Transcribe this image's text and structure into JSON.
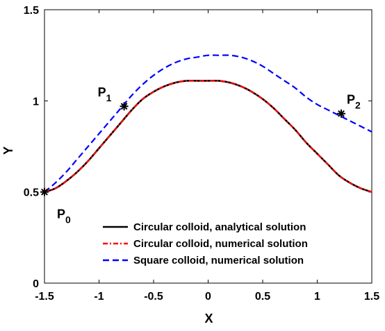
{
  "chart_data": {
    "type": "line",
    "xlabel": "X",
    "ylabel": "Y",
    "xlim": [
      -1.5,
      1.5
    ],
    "ylim": [
      0,
      1.5
    ],
    "xticks": [
      -1.5,
      -1,
      -0.5,
      0,
      0.5,
      1,
      1.5
    ],
    "xtick_labels": [
      "-1.5",
      "-1",
      "-0.5",
      "0",
      "0.5",
      "1",
      "1.5"
    ],
    "yticks": [
      0,
      0.5,
      1,
      1.5
    ],
    "ytick_labels": [
      "0",
      "0.5",
      "1",
      "1.5"
    ],
    "grid": false,
    "legend_position": "bottom-center",
    "series": [
      {
        "name": "Circular colloid, analytical solution",
        "color": "#000000",
        "style": "solid",
        "x": [
          -1.5,
          -1.4,
          -1.3,
          -1.2,
          -1.1,
          -1.0,
          -0.9,
          -0.8,
          -0.7,
          -0.6,
          -0.5,
          -0.4,
          -0.3,
          -0.2,
          -0.1,
          0.0,
          0.1,
          0.2,
          0.3,
          0.4,
          0.5,
          0.6,
          0.7,
          0.8,
          0.9,
          1.0,
          1.1,
          1.2,
          1.3,
          1.4,
          1.5
        ],
        "y": [
          0.5,
          0.52,
          0.56,
          0.61,
          0.67,
          0.74,
          0.81,
          0.88,
          0.95,
          1.01,
          1.05,
          1.08,
          1.1,
          1.11,
          1.11,
          1.11,
          1.11,
          1.1,
          1.08,
          1.05,
          1.01,
          0.96,
          0.9,
          0.84,
          0.77,
          0.71,
          0.65,
          0.59,
          0.55,
          0.52,
          0.5
        ]
      },
      {
        "name": "Circular colloid, numerical solution",
        "color": "#ff0000",
        "style": "dashdot",
        "x": [
          -1.5,
          -1.4,
          -1.3,
          -1.2,
          -1.1,
          -1.0,
          -0.9,
          -0.8,
          -0.7,
          -0.6,
          -0.5,
          -0.4,
          -0.3,
          -0.2,
          -0.1,
          0.0,
          0.1,
          0.2,
          0.3,
          0.4,
          0.5,
          0.6,
          0.7,
          0.8,
          0.9,
          1.0,
          1.1,
          1.2,
          1.3,
          1.4,
          1.5
        ],
        "y": [
          0.5,
          0.52,
          0.56,
          0.61,
          0.67,
          0.74,
          0.81,
          0.88,
          0.95,
          1.01,
          1.05,
          1.08,
          1.1,
          1.11,
          1.11,
          1.11,
          1.11,
          1.1,
          1.08,
          1.05,
          1.01,
          0.96,
          0.9,
          0.84,
          0.77,
          0.71,
          0.65,
          0.59,
          0.55,
          0.52,
          0.5
        ]
      },
      {
        "name": "Square colloid, numerical solution",
        "color": "#0000ff",
        "style": "dashed",
        "x": [
          -1.5,
          -1.4,
          -1.3,
          -1.2,
          -1.1,
          -1.0,
          -0.9,
          -0.8,
          -0.7,
          -0.6,
          -0.5,
          -0.4,
          -0.3,
          -0.2,
          -0.1,
          0.0,
          0.1,
          0.2,
          0.3,
          0.4,
          0.5,
          0.6,
          0.7,
          0.8,
          0.9,
          1.0,
          1.1,
          1.2,
          1.3,
          1.4,
          1.5
        ],
        "y": [
          0.5,
          0.55,
          0.61,
          0.68,
          0.75,
          0.82,
          0.89,
          0.96,
          1.03,
          1.09,
          1.14,
          1.18,
          1.21,
          1.23,
          1.24,
          1.25,
          1.25,
          1.25,
          1.24,
          1.22,
          1.19,
          1.15,
          1.11,
          1.07,
          1.02,
          0.98,
          0.95,
          0.92,
          0.89,
          0.86,
          0.83
        ]
      }
    ],
    "points": [
      {
        "main": "P",
        "sub": "0",
        "x": -1.5,
        "y": 0.5,
        "label_side": "below-right"
      },
      {
        "main": "P",
        "sub": "1",
        "x": -0.77,
        "y": 0.97,
        "label_side": "upper-left"
      },
      {
        "main": "P",
        "sub": "2",
        "x": 1.22,
        "y": 0.93,
        "label_side": "upper-right"
      }
    ]
  }
}
